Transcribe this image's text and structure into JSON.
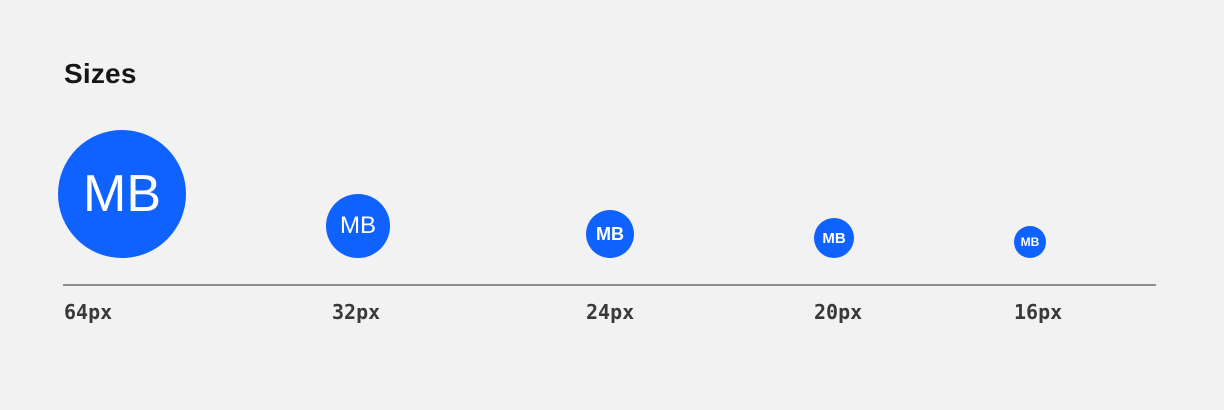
{
  "section": {
    "title": "Sizes"
  },
  "colors": {
    "avatar_background": "#0f62fe",
    "avatar_text": "#ffffff",
    "page_background": "#f2f2f2",
    "divider": "#8d8d8d"
  },
  "avatars": [
    {
      "initials": "MB",
      "size_label": "64px"
    },
    {
      "initials": "MB",
      "size_label": "32px"
    },
    {
      "initials": "MB",
      "size_label": "24px"
    },
    {
      "initials": "MB",
      "size_label": "20px"
    },
    {
      "initials": "MB",
      "size_label": "16px"
    }
  ]
}
